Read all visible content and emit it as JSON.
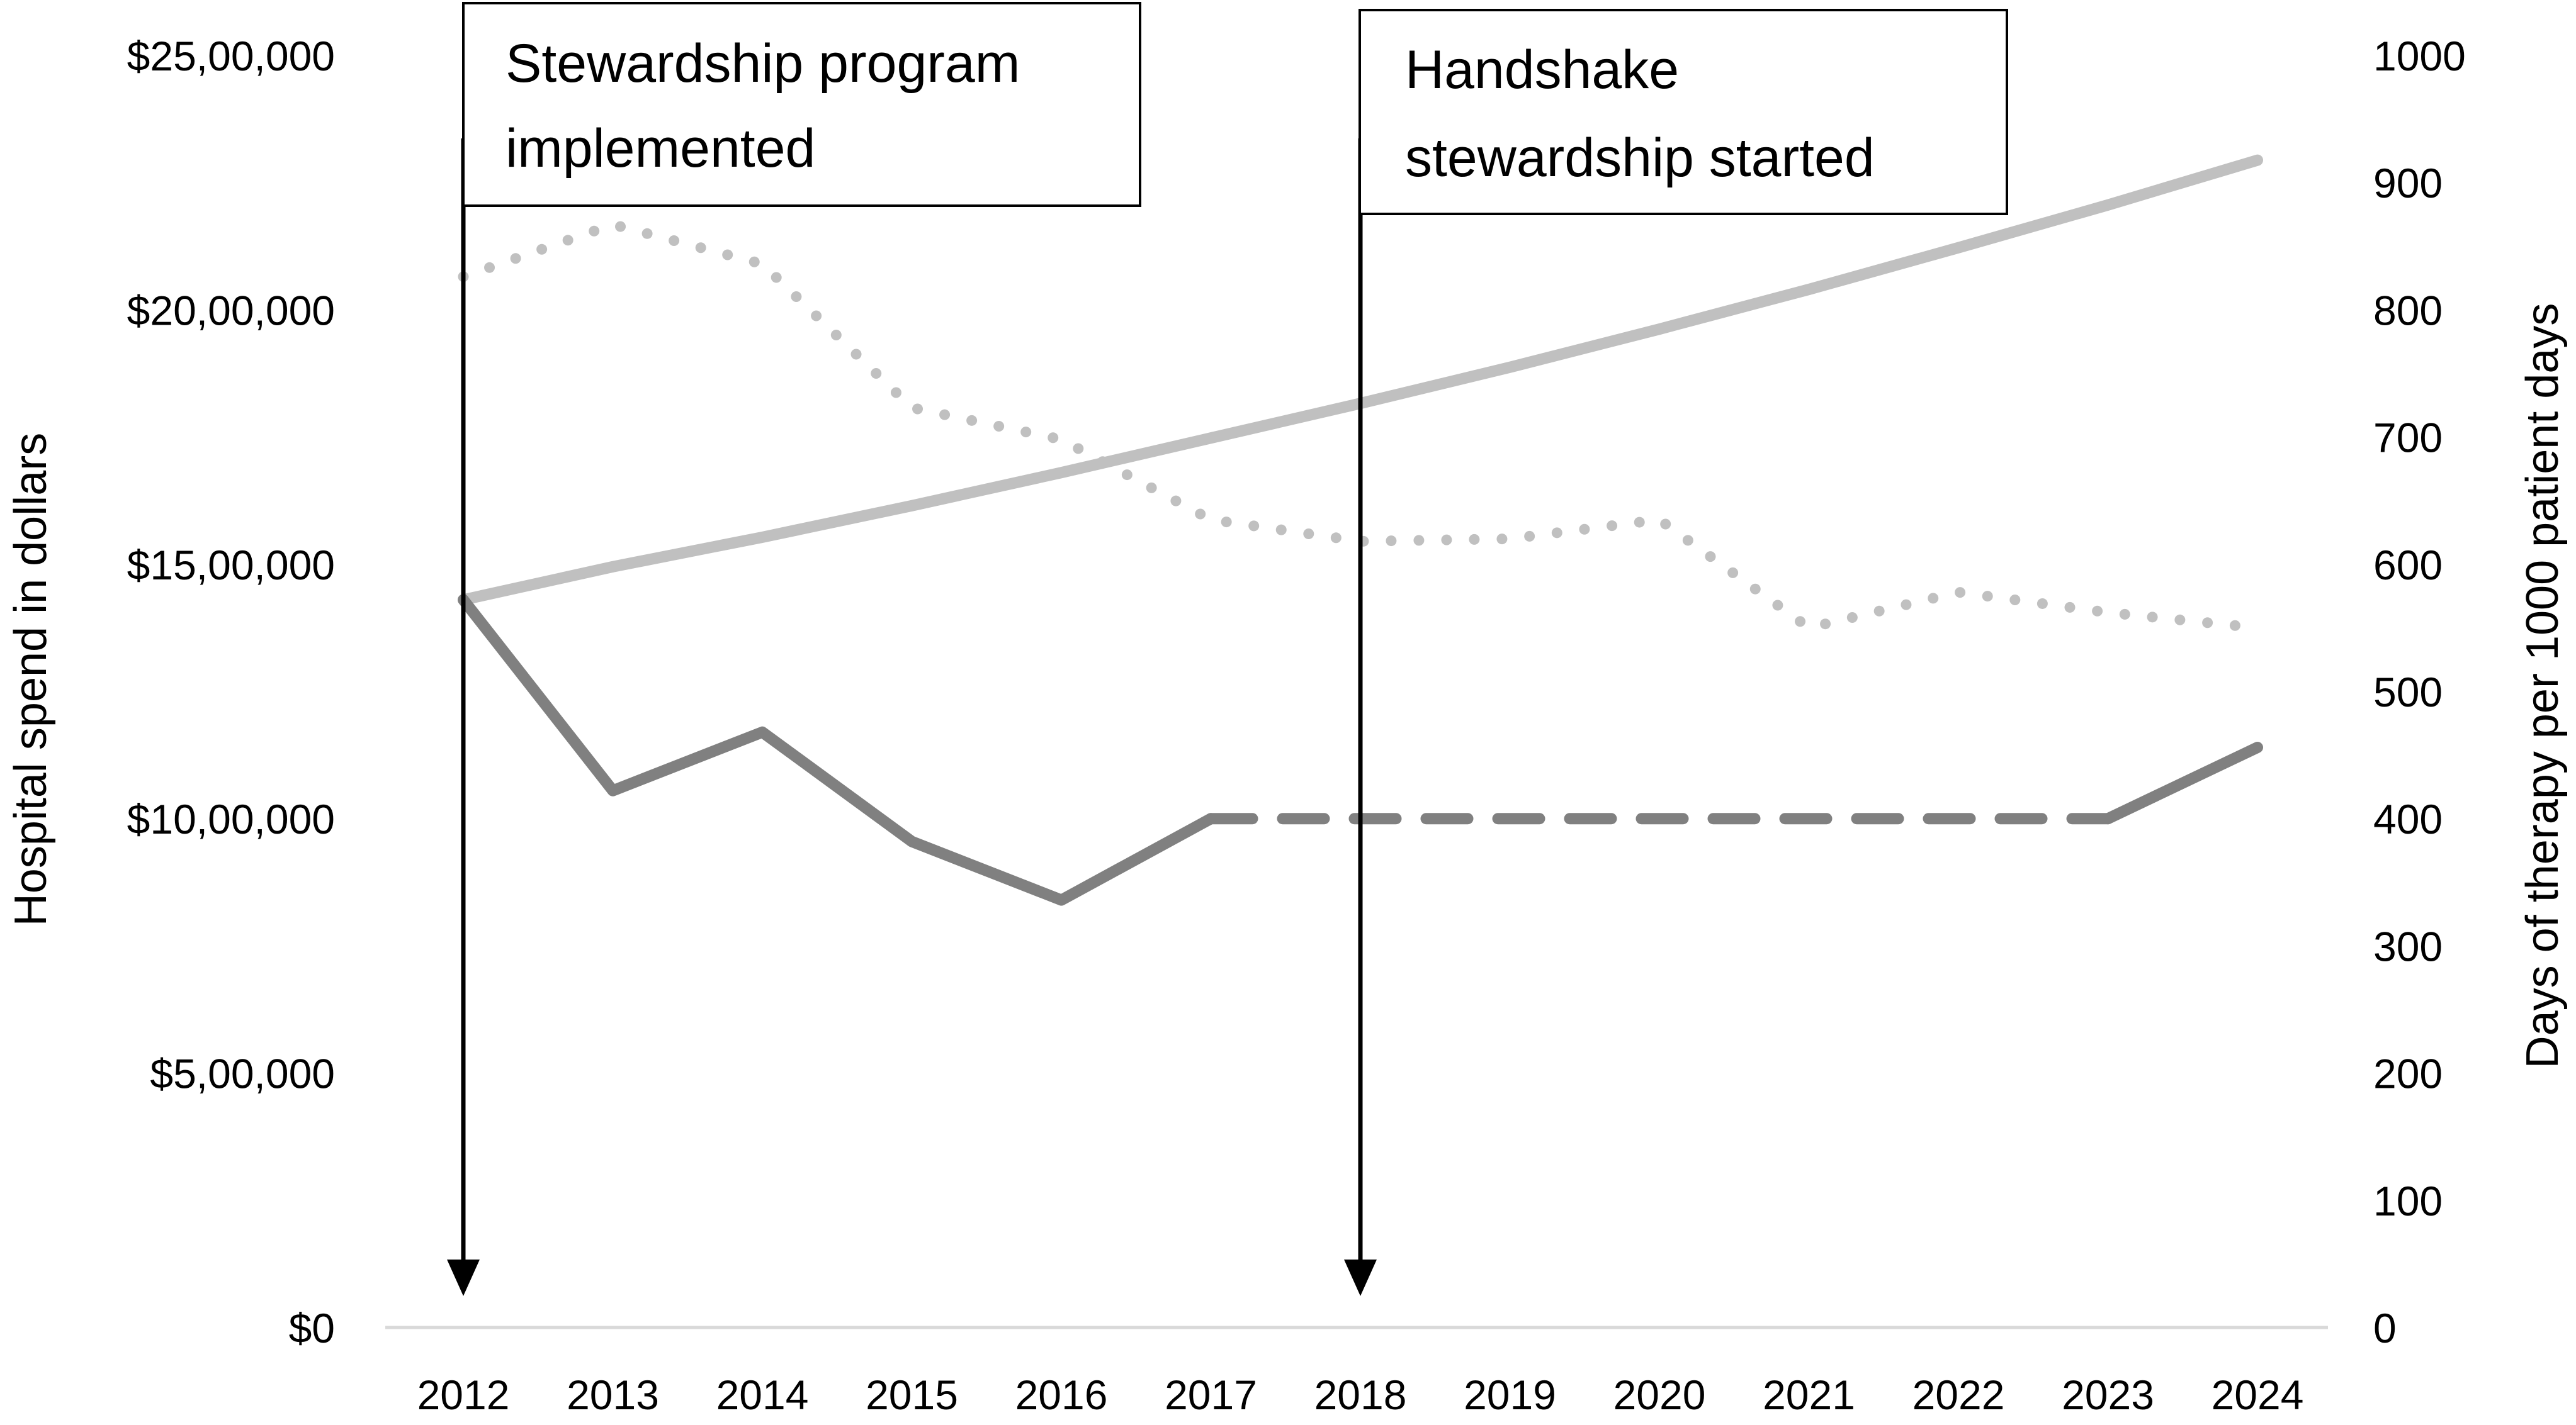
{
  "chart_data": {
    "type": "line",
    "title": "",
    "categories": [
      "2012",
      "2013",
      "2014",
      "2015",
      "2016",
      "2017",
      "2018",
      "2019",
      "2020",
      "2021",
      "2022",
      "2023",
      "2024"
    ],
    "left_axis": {
      "label": "Hospital spend in dollars",
      "range": [
        0,
        2500000
      ],
      "tick_labels": [
        "$0",
        "$5,00,000",
        "$10,00,000",
        "$15,00,000",
        "$20,00,000",
        "$25,00,000"
      ],
      "tick_values": [
        0,
        500000,
        1000000,
        1500000,
        2000000,
        2500000
      ]
    },
    "right_axis": {
      "label": "Days of therapy per 1000 patient days",
      "range": [
        0,
        1000
      ],
      "tick_labels": [
        "0",
        "100",
        "200",
        "300",
        "400",
        "500",
        "600",
        "700",
        "800",
        "900",
        "1000"
      ],
      "tick_values": [
        0,
        100,
        200,
        300,
        400,
        500,
        600,
        700,
        800,
        900,
        1000
      ]
    },
    "grid": false,
    "legend": "none",
    "series": [
      {
        "axis": "left",
        "style": "solid",
        "color": "#c0c0c0",
        "values": [
          1430000,
          1495000,
          1553000,
          1615000,
          1680000,
          1748000,
          1816000,
          1887000,
          1962000,
          2040000,
          2122000,
          2206000,
          2294000
        ]
      },
      {
        "axis": "right",
        "style": "dotted",
        "color": "#c0c0c0",
        "values": [
          826,
          867,
          836,
          723,
          698,
          635,
          618,
          620,
          635,
          550,
          578,
          562,
          550
        ]
      },
      {
        "axis": "left",
        "style": "solid",
        "color": "#808080",
        "values": [
          1430000,
          1055000,
          1170000,
          955000,
          840000,
          1000000,
          null,
          null,
          null,
          null,
          null,
          1000000,
          1140000
        ]
      },
      {
        "axis": "left",
        "style": "dashed",
        "color": "#808080",
        "values": [
          null,
          null,
          null,
          null,
          null,
          1000000,
          1000000,
          1000000,
          1000000,
          1000000,
          1000000,
          1000000,
          null
        ]
      }
    ],
    "annotations": [
      {
        "x": "2012",
        "lines": [
          "Stewardship program",
          "implemented"
        ]
      },
      {
        "x": "2018",
        "lines": [
          "Handshake",
          "stewardship started"
        ]
      }
    ]
  }
}
